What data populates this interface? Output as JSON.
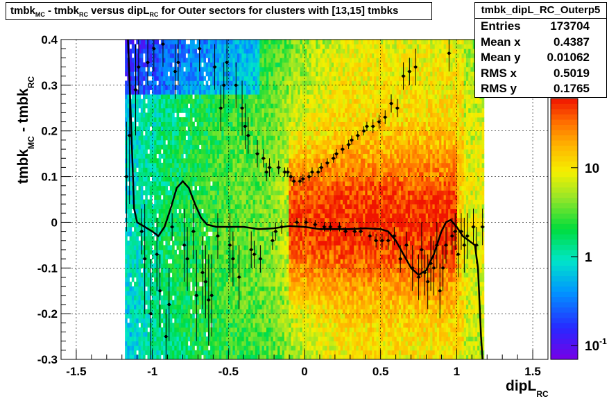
{
  "title": "tmbk_MC - tmbk_RC versus dipL_RC for Outer sectors for clusters with [13,15] tmbks",
  "title_parts": {
    "a": "tmbk",
    "a_sub": "MC",
    "b": " - tmbk",
    "b_sub": "RC",
    "c": " versus dipL",
    "c_sub": "RC",
    "d": " for Outer sectors for clusters with [13,15] tmbks"
  },
  "stats": {
    "name": "tmbk_dipL_RC_Outerp5",
    "rows": [
      {
        "label": "Entries",
        "value": "173704"
      },
      {
        "label": "Mean x",
        "value": "0.4387"
      },
      {
        "label": "Mean y",
        "value": "0.01062"
      },
      {
        "label": "RMS x",
        "value": "0.5019"
      },
      {
        "label": "RMS y",
        "value": "0.1765"
      }
    ]
  },
  "axis_labels": {
    "x_main": "dipL",
    "x_sub": "RC",
    "y_a": "tmbk",
    "y_a_sub": "MC",
    "y_b": " - tmbk",
    "y_b_sub": "RC"
  },
  "colorbar": {
    "labels": [
      {
        "text": "10",
        "value": 10
      },
      {
        "text": "1",
        "value": 1
      },
      {
        "text": "10",
        "sup": "-1",
        "value": 0.1
      }
    ]
  },
  "chart_data": {
    "type": "heatmap",
    "xlim": [
      -1.6,
      1.6
    ],
    "ylim": [
      -0.3,
      0.4
    ],
    "x_ticks": [
      {
        "v": -1.5,
        "t": "-1.5"
      },
      {
        "v": -1,
        "t": "-1"
      },
      {
        "v": -0.5,
        "t": "-0.5"
      },
      {
        "v": 0,
        "t": "0"
      },
      {
        "v": 0.5,
        "t": "0.5"
      },
      {
        "v": 1,
        "t": "1"
      },
      {
        "v": 1.5,
        "t": "1.5"
      }
    ],
    "y_ticks": [
      {
        "v": -0.3,
        "t": "-0.3"
      },
      {
        "v": -0.2,
        "t": "-0.2"
      },
      {
        "v": -0.1,
        "t": "-0.1"
      },
      {
        "v": 0,
        "t": "0"
      },
      {
        "v": 0.1,
        "t": "0.1"
      },
      {
        "v": 0.2,
        "t": "0.2"
      },
      {
        "v": 0.3,
        "t": "0.3"
      },
      {
        "v": 0.4,
        "t": "0.4"
      }
    ],
    "color_scale": "log",
    "z_range": [
      0.07,
      60
    ],
    "grid": true,
    "profile_points": [
      {
        "x": -1.17,
        "y": 0.1,
        "ey": 0.12
      },
      {
        "x": -1.15,
        "y": 0.19,
        "ey": 0.15
      },
      {
        "x": -1.11,
        "y": 0.29,
        "ey": 0.1
      },
      {
        "x": -1.09,
        "y": 0.34,
        "ey": 0.06
      },
      {
        "x": -1.07,
        "y": -0.02,
        "ey": 0.05
      },
      {
        "x": -1.05,
        "y": -0.08,
        "ey": 0.12
      },
      {
        "x": -1.03,
        "y": 0.35,
        "ey": 0.05
      },
      {
        "x": -1.01,
        "y": -0.2,
        "ey": 0.12
      },
      {
        "x": -0.99,
        "y": 0.38,
        "ey": 0.05
      },
      {
        "x": -0.97,
        "y": -0.07,
        "ey": 0.08
      },
      {
        "x": -0.95,
        "y": -0.15,
        "ey": 0.08
      },
      {
        "x": -0.93,
        "y": 0.39,
        "ey": 0.05
      },
      {
        "x": -0.91,
        "y": -0.25,
        "ey": 0.06
      },
      {
        "x": -0.89,
        "y": -0.18,
        "ey": 0.08
      },
      {
        "x": -0.87,
        "y": -0.01,
        "ey": 0.03
      },
      {
        "x": -0.85,
        "y": 0.33,
        "ey": 0.06
      },
      {
        "x": -0.83,
        "y": 0.35,
        "ey": 0.05
      },
      {
        "x": -0.79,
        "y": -0.05,
        "ey": 0.08
      },
      {
        "x": -0.77,
        "y": -0.08,
        "ey": 0.07
      },
      {
        "x": -0.73,
        "y": -0.02,
        "ey": 0.06
      },
      {
        "x": -0.71,
        "y": -0.16,
        "ey": 0.1
      },
      {
        "x": -0.69,
        "y": 0.38,
        "ey": 0.05
      },
      {
        "x": -0.67,
        "y": -0.11,
        "ey": 0.08
      },
      {
        "x": -0.65,
        "y": -0.13,
        "ey": 0.08
      },
      {
        "x": -0.63,
        "y": -0.17,
        "ey": 0.1
      },
      {
        "x": -0.61,
        "y": -0.16,
        "ey": 0.09
      },
      {
        "x": -0.59,
        "y": 0.34,
        "ey": 0.05
      },
      {
        "x": -0.57,
        "y": -0.03,
        "ey": 0.05
      },
      {
        "x": -0.55,
        "y": 0.25,
        "ey": 0.05
      },
      {
        "x": -0.53,
        "y": 0.3,
        "ey": 0.05
      },
      {
        "x": -0.51,
        "y": 0.35,
        "ey": 0.05
      },
      {
        "x": -0.49,
        "y": -0.05,
        "ey": 0.07
      },
      {
        "x": -0.47,
        "y": -0.08,
        "ey": 0.06
      },
      {
        "x": -0.45,
        "y": 0.3,
        "ey": 0.05
      },
      {
        "x": -0.43,
        "y": -0.12,
        "ey": 0.07
      },
      {
        "x": -0.41,
        "y": 0.25,
        "ey": 0.06
      },
      {
        "x": -0.39,
        "y": 0.21,
        "ey": 0.05
      },
      {
        "x": -0.37,
        "y": 0.19,
        "ey": 0.04
      },
      {
        "x": -0.35,
        "y": -0.06,
        "ey": 0.04
      },
      {
        "x": -0.33,
        "y": -0.07,
        "ey": 0.03
      },
      {
        "x": -0.31,
        "y": 0.15,
        "ey": 0.03
      },
      {
        "x": -0.29,
        "y": -0.08,
        "ey": 0.03
      },
      {
        "x": -0.27,
        "y": 0.14,
        "ey": 0.02
      },
      {
        "x": -0.25,
        "y": 0.11,
        "ey": 0.02
      },
      {
        "x": -0.23,
        "y": 0.12,
        "ey": 0.02
      },
      {
        "x": -0.21,
        "y": -0.04,
        "ey": 0.02
      },
      {
        "x": -0.19,
        "y": -0.02,
        "ey": 0.02
      },
      {
        "x": -0.17,
        "y": 0.12,
        "ey": 0.015
      },
      {
        "x": -0.15,
        "y": -0.01,
        "ey": 0.015
      },
      {
        "x": -0.13,
        "y": 0.11,
        "ey": 0.01
      },
      {
        "x": -0.11,
        "y": 0.11,
        "ey": 0.01
      },
      {
        "x": -0.09,
        "y": 0.1,
        "ey": 0.01
      },
      {
        "x": -0.07,
        "y": 0.09,
        "ey": 0.01
      },
      {
        "x": -0.05,
        "y": 0.0,
        "ey": 0.01
      },
      {
        "x": -0.03,
        "y": 0.09,
        "ey": 0.01
      },
      {
        "x": -0.01,
        "y": 0.095,
        "ey": 0.01
      },
      {
        "x": 0.01,
        "y": 0.0,
        "ey": 0.01
      },
      {
        "x": 0.03,
        "y": 0.1,
        "ey": 0.01
      },
      {
        "x": 0.05,
        "y": 0.11,
        "ey": 0.01
      },
      {
        "x": 0.07,
        "y": -0.005,
        "ey": 0.01
      },
      {
        "x": 0.09,
        "y": 0.11,
        "ey": 0.01
      },
      {
        "x": 0.11,
        "y": 0.12,
        "ey": 0.01
      },
      {
        "x": 0.13,
        "y": -0.01,
        "ey": 0.01
      },
      {
        "x": 0.15,
        "y": 0.13,
        "ey": 0.01
      },
      {
        "x": 0.17,
        "y": -0.01,
        "ey": 0.01
      },
      {
        "x": 0.19,
        "y": 0.14,
        "ey": 0.01
      },
      {
        "x": 0.21,
        "y": 0.15,
        "ey": 0.01
      },
      {
        "x": 0.23,
        "y": -0.01,
        "ey": 0.01
      },
      {
        "x": 0.25,
        "y": 0.16,
        "ey": 0.01
      },
      {
        "x": 0.27,
        "y": -0.02,
        "ey": 0.01
      },
      {
        "x": 0.29,
        "y": 0.17,
        "ey": 0.01
      },
      {
        "x": 0.31,
        "y": 0.18,
        "ey": 0.01
      },
      {
        "x": 0.33,
        "y": -0.02,
        "ey": 0.01
      },
      {
        "x": 0.35,
        "y": 0.19,
        "ey": 0.01
      },
      {
        "x": 0.37,
        "y": -0.02,
        "ey": 0.01
      },
      {
        "x": 0.39,
        "y": 0.2,
        "ey": 0.01
      },
      {
        "x": 0.41,
        "y": 0.21,
        "ey": 0.01
      },
      {
        "x": 0.43,
        "y": -0.03,
        "ey": 0.01
      },
      {
        "x": 0.45,
        "y": 0.21,
        "ey": 0.015
      },
      {
        "x": 0.47,
        "y": -0.04,
        "ey": 0.015
      },
      {
        "x": 0.49,
        "y": 0.22,
        "ey": 0.015
      },
      {
        "x": 0.51,
        "y": -0.04,
        "ey": 0.015
      },
      {
        "x": 0.53,
        "y": 0.23,
        "ey": 0.015
      },
      {
        "x": 0.55,
        "y": -0.04,
        "ey": 0.02
      },
      {
        "x": 0.57,
        "y": 0.26,
        "ey": 0.02
      },
      {
        "x": 0.59,
        "y": -0.03,
        "ey": 0.02
      },
      {
        "x": 0.61,
        "y": 0.25,
        "ey": 0.02
      },
      {
        "x": 0.63,
        "y": -0.08,
        "ey": 0.03
      },
      {
        "x": 0.65,
        "y": 0.32,
        "ey": 0.03
      },
      {
        "x": 0.67,
        "y": -0.05,
        "ey": 0.03
      },
      {
        "x": 0.69,
        "y": 0.33,
        "ey": 0.03
      },
      {
        "x": 0.71,
        "y": -0.1,
        "ey": 0.05
      },
      {
        "x": 0.73,
        "y": 0.34,
        "ey": 0.04
      },
      {
        "x": 0.75,
        "y": -0.12,
        "ey": 0.05
      },
      {
        "x": 0.77,
        "y": -0.06,
        "ey": 0.06
      },
      {
        "x": 0.79,
        "y": -0.11,
        "ey": 0.05
      },
      {
        "x": 0.81,
        "y": -0.13,
        "ey": 0.06
      },
      {
        "x": 0.83,
        "y": -0.09,
        "ey": 0.06
      },
      {
        "x": 0.85,
        "y": -0.1,
        "ey": 0.06
      },
      {
        "x": 0.87,
        "y": -0.05,
        "ey": 0.05
      },
      {
        "x": 0.89,
        "y": -0.15,
        "ey": 0.06
      },
      {
        "x": 0.91,
        "y": -0.1,
        "ey": 0.05
      },
      {
        "x": 0.93,
        "y": -0.05,
        "ey": 0.04
      },
      {
        "x": 0.95,
        "y": 0.37,
        "ey": 0.04
      },
      {
        "x": 0.97,
        "y": -0.03,
        "ey": 0.04
      },
      {
        "x": 0.99,
        "y": -0.02,
        "ey": 0.04
      },
      {
        "x": 1.01,
        "y": -0.07,
        "ey": 0.05
      },
      {
        "x": 1.03,
        "y": -0.02,
        "ey": 0.04
      },
      {
        "x": 1.05,
        "y": -0.05,
        "ey": 0.06
      },
      {
        "x": 1.07,
        "y": -0.03,
        "ey": 0.05
      },
      {
        "x": 1.11,
        "y": -0.01,
        "ey": 0.04
      },
      {
        "x": 1.13,
        "y": -0.05,
        "ey": 0.04
      },
      {
        "x": 1.17,
        "y": -0.01,
        "ey": 0.04
      }
    ],
    "fit_curve": [
      [
        -1.16,
        0.4
      ],
      [
        -1.14,
        0.22
      ],
      [
        -1.12,
        0.03
      ],
      [
        -1.1,
        0.0
      ],
      [
        -1.05,
        -0.01
      ],
      [
        -1.0,
        -0.02
      ],
      [
        -0.96,
        -0.03
      ],
      [
        -0.92,
        -0.01
      ],
      [
        -0.88,
        0.03
      ],
      [
        -0.84,
        0.075
      ],
      [
        -0.8,
        0.09
      ],
      [
        -0.76,
        0.075
      ],
      [
        -0.72,
        0.04
      ],
      [
        -0.68,
        0.01
      ],
      [
        -0.64,
        -0.005
      ],
      [
        -0.58,
        -0.01
      ],
      [
        -0.5,
        -0.01
      ],
      [
        -0.4,
        -0.01
      ],
      [
        -0.3,
        -0.015
      ],
      [
        -0.2,
        -0.013
      ],
      [
        -0.1,
        -0.008
      ],
      [
        0.0,
        -0.01
      ],
      [
        0.1,
        -0.015
      ],
      [
        0.2,
        -0.015
      ],
      [
        0.3,
        -0.015
      ],
      [
        0.4,
        -0.013
      ],
      [
        0.5,
        -0.015
      ],
      [
        0.55,
        -0.02
      ],
      [
        0.6,
        -0.04
      ],
      [
        0.65,
        -0.07
      ],
      [
        0.7,
        -0.1
      ],
      [
        0.75,
        -0.115
      ],
      [
        0.8,
        -0.105
      ],
      [
        0.85,
        -0.07
      ],
      [
        0.9,
        -0.02
      ],
      [
        0.93,
        0.0
      ],
      [
        0.96,
        0.005
      ],
      [
        1.0,
        -0.01
      ],
      [
        1.04,
        -0.03
      ],
      [
        1.08,
        -0.04
      ],
      [
        1.12,
        -0.05
      ],
      [
        1.14,
        -0.1
      ],
      [
        1.16,
        -0.25
      ],
      [
        1.17,
        -0.3
      ]
    ]
  }
}
